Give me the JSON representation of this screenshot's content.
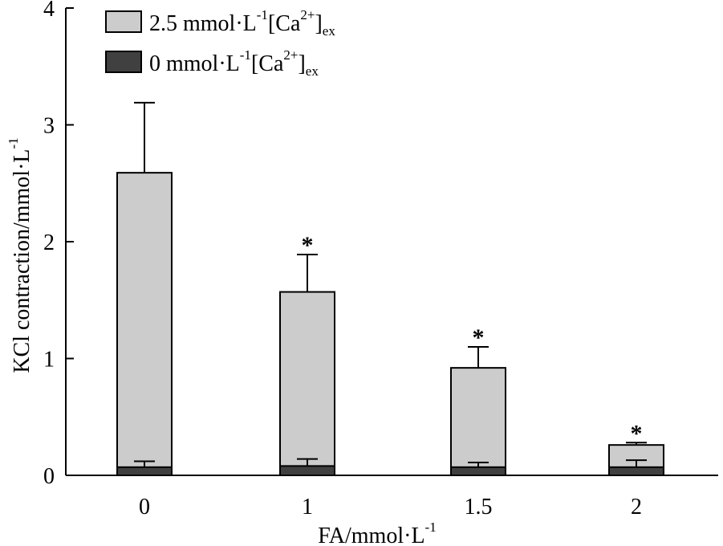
{
  "chart_data": {
    "type": "bar",
    "title": "",
    "categories": [
      "0",
      "1",
      "1.5",
      "2"
    ],
    "series": [
      {
        "name_parts": {
          "main": "2.5 mmol·L",
          "sup1": "-1",
          "mid": "[Ca",
          "sup2": "2+",
          "end": "]",
          "sub": "ex"
        },
        "values": [
          2.59,
          1.57,
          0.92,
          0.26
        ],
        "errors": [
          0.6,
          0.32,
          0.18,
          0.02
        ],
        "color": "#cccccc",
        "significant": [
          false,
          true,
          true,
          true
        ]
      },
      {
        "name_parts": {
          "main": "0 mmol·L",
          "sup1": "-1",
          "mid": "[Ca",
          "sup2": "2+",
          "end": "]",
          "sub": "ex"
        },
        "values": [
          0.07,
          0.08,
          0.07,
          0.07
        ],
        "errors": [
          0.05,
          0.06,
          0.04,
          0.06
        ],
        "color": "#404040",
        "significant": [
          false,
          false,
          false,
          false
        ]
      }
    ],
    "significance_marker": "*",
    "xlabel_parts": {
      "main": "FA/mmol·L",
      "sup": "-1"
    },
    "ylabel_parts": {
      "main": "KCl contraction/mmol·L",
      "sup": "-1"
    },
    "ylim": [
      0,
      4
    ],
    "yticks": [
      "0",
      "1",
      "2",
      "3",
      "4"
    ],
    "legend_position": "top-left",
    "grid": false
  }
}
